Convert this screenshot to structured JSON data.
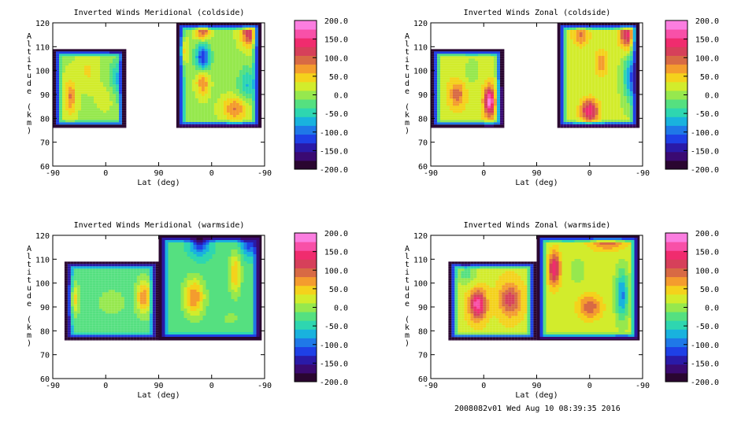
{
  "footer": "2008082v01 Wed Aug 10 08:39:35 2016",
  "colorbar": {
    "ticks": [
      "200.0",
      "150.0",
      "100.0",
      "50.0",
      "0.0",
      "-50.0",
      "-100.0",
      "-150.0",
      "-200.0"
    ],
    "colors": [
      "#2a0630",
      "#3a0a72",
      "#2a1aa8",
      "#1e40e6",
      "#1f78e8",
      "#19b2de",
      "#2ed6b0",
      "#55e080",
      "#96e84e",
      "#d2ec2c",
      "#f4d21c",
      "#f49c2e",
      "#d86a44",
      "#d6405a",
      "#f02c6e",
      "#f850a8",
      "#fb7ee0"
    ]
  },
  "chart_data": [
    {
      "type": "heatmap",
      "title": "Inverted Winds Meridional (coldside)",
      "xlabel": "Lat (deg)",
      "ylabel": "Altitude (km)",
      "xticks": [
        "-90",
        "0",
        "90",
        "0",
        "-90"
      ],
      "yticks": [
        "60",
        "70",
        "80",
        "90",
        "100",
        "110",
        "120"
      ],
      "ylim": [
        60,
        120
      ],
      "clim": [
        -200,
        200
      ],
      "regions": [
        {
          "xspan": [
            -90,
            35
          ],
          "yspan": [
            76,
            109
          ],
          "base": 10,
          "peaks": [
            {
              "x": -60,
              "y": 89,
              "v": 75,
              "rx": 9,
              "ry": 7
            },
            {
              "x": 20,
              "y": 95,
              "v": -80,
              "rx": 16,
              "ry": 9
            },
            {
              "x": 15,
              "y": 90,
              "v": 35,
              "rx": 20,
              "ry": 6
            },
            {
              "x": -30,
              "y": 100,
              "v": 30,
              "rx": 15,
              "ry": 6
            }
          ]
        },
        {
          "xspan": [
            120,
            265
          ],
          "yspan": [
            76,
            120
          ],
          "base": 5,
          "peaks": [
            {
              "x": 165,
              "y": 105,
              "v": -140,
              "rx": 12,
              "ry": 7
            },
            {
              "x": 165,
              "y": 96,
              "v": 95,
              "rx": 11,
              "ry": 6
            },
            {
              "x": 245,
              "y": 116,
              "v": 120,
              "rx": 16,
              "ry": 6
            },
            {
              "x": 165,
              "y": 117,
              "v": 110,
              "rx": 12,
              "ry": 5
            },
            {
              "x": 240,
              "y": 94,
              "v": -65,
              "rx": 15,
              "ry": 7
            },
            {
              "x": 220,
              "y": 84,
              "v": 80,
              "rx": 22,
              "ry": 5
            },
            {
              "x": 130,
              "y": 108,
              "v": 130,
              "rx": 6,
              "ry": 6
            }
          ]
        }
      ]
    },
    {
      "type": "heatmap",
      "title": "Inverted Winds Zonal (coldside)",
      "xlabel": "Lat (deg)",
      "ylabel": "Altitude (km)",
      "xticks": [
        "-90",
        "0",
        "90",
        "0",
        "-90"
      ],
      "yticks": [
        "60",
        "70",
        "80",
        "90",
        "100",
        "110",
        "120"
      ],
      "ylim": [
        60,
        120
      ],
      "clim": [
        -200,
        200
      ],
      "regions": [
        {
          "xspan": [
            -90,
            35
          ],
          "yspan": [
            76,
            109
          ],
          "base": 30,
          "peaks": [
            {
              "x": 10,
              "y": 87,
              "v": 160,
              "rx": 9,
              "ry": 6
            },
            {
              "x": -45,
              "y": 90,
              "v": 70,
              "rx": 12,
              "ry": 5
            },
            {
              "x": -20,
              "y": 100,
              "v": -35,
              "rx": 15,
              "ry": 6
            },
            {
              "x": 25,
              "y": 104,
              "v": -30,
              "rx": 12,
              "ry": 6
            }
          ]
        },
        {
          "xspan": [
            125,
            265
          ],
          "yspan": [
            76,
            120
          ],
          "base": 15,
          "peaks": [
            {
              "x": 180,
              "y": 83,
              "v": 135,
              "rx": 16,
              "ry": 5
            },
            {
              "x": 245,
              "y": 115,
              "v": 120,
              "rx": 15,
              "ry": 6
            },
            {
              "x": 250,
              "y": 97,
              "v": -110,
              "rx": 12,
              "ry": 9
            },
            {
              "x": 200,
              "y": 103,
              "v": 60,
              "rx": 12,
              "ry": 6
            },
            {
              "x": 165,
              "y": 115,
              "v": 70,
              "rx": 15,
              "ry": 5
            }
          ]
        }
      ]
    },
    {
      "type": "heatmap",
      "title": "Inverted Winds Meridional (warmside)",
      "xlabel": "Lat (deg)",
      "ylabel": "Altitude (km)",
      "xticks": [
        "-90",
        "0",
        "90",
        "0",
        "-90"
      ],
      "yticks": [
        "60",
        "70",
        "80",
        "90",
        "100",
        "110",
        "120"
      ],
      "ylim": [
        60,
        120
      ],
      "clim": [
        -200,
        200
      ],
      "regions": [
        {
          "xspan": [
            -70,
            90
          ],
          "yspan": [
            76,
            109
          ],
          "base": -25,
          "peaks": [
            {
              "x": -55,
              "y": 93,
              "v": 80,
              "rx": 10,
              "ry": 6
            },
            {
              "x": 65,
              "y": 94,
              "v": 105,
              "rx": 13,
              "ry": 7
            },
            {
              "x": 10,
              "y": 92,
              "v": 35,
              "rx": 22,
              "ry": 5
            }
          ]
        },
        {
          "xspan": [
            90,
            265
          ],
          "yspan": [
            76,
            120
          ],
          "base": -30,
          "peaks": [
            {
              "x": 150,
              "y": 94,
              "v": 110,
              "rx": 18,
              "ry": 8
            },
            {
              "x": 220,
              "y": 104,
              "v": 90,
              "rx": 10,
              "ry": 9
            },
            {
              "x": 210,
              "y": 85,
              "v": 20,
              "rx": 30,
              "ry": 5
            },
            {
              "x": 160,
              "y": 118,
              "v": -110,
              "rx": 16,
              "ry": 6
            },
            {
              "x": 245,
              "y": 117,
              "v": -100,
              "rx": 15,
              "ry": 5
            }
          ]
        }
      ]
    },
    {
      "type": "heatmap",
      "title": "Inverted Winds Zonal (warmside)",
      "xlabel": "Lat (deg)",
      "ylabel": "Altitude (km)",
      "xticks": [
        "-90",
        "0",
        "90",
        "0",
        "-90"
      ],
      "yticks": [
        "60",
        "70",
        "80",
        "90",
        "100",
        "110",
        "120"
      ],
      "ylim": [
        60,
        120
      ],
      "clim": [
        -200,
        200
      ],
      "regions": [
        {
          "xspan": [
            -60,
            90
          ],
          "yspan": [
            76,
            109
          ],
          "base": 30,
          "peaks": [
            {
              "x": -10,
              "y": 91,
              "v": 140,
              "rx": 14,
              "ry": 6
            },
            {
              "x": 45,
              "y": 93,
              "v": 90,
              "rx": 18,
              "ry": 7
            },
            {
              "x": -30,
              "y": 104,
              "v": -50,
              "rx": 20,
              "ry": 5
            }
          ]
        },
        {
          "xspan": [
            90,
            265
          ],
          "yspan": [
            76,
            120
          ],
          "base": 20,
          "peaks": [
            {
              "x": 120,
              "y": 106,
              "v": 130,
              "rx": 10,
              "ry": 7
            },
            {
              "x": 235,
              "y": 95,
              "v": -110,
              "rx": 10,
              "ry": 10
            },
            {
              "x": 210,
              "y": 118,
              "v": 90,
              "rx": 30,
              "ry": 4
            },
            {
              "x": 180,
              "y": 90,
              "v": 80,
              "rx": 20,
              "ry": 5
            },
            {
              "x": 160,
              "y": 105,
              "v": -20,
              "rx": 12,
              "ry": 6
            }
          ]
        }
      ]
    }
  ]
}
